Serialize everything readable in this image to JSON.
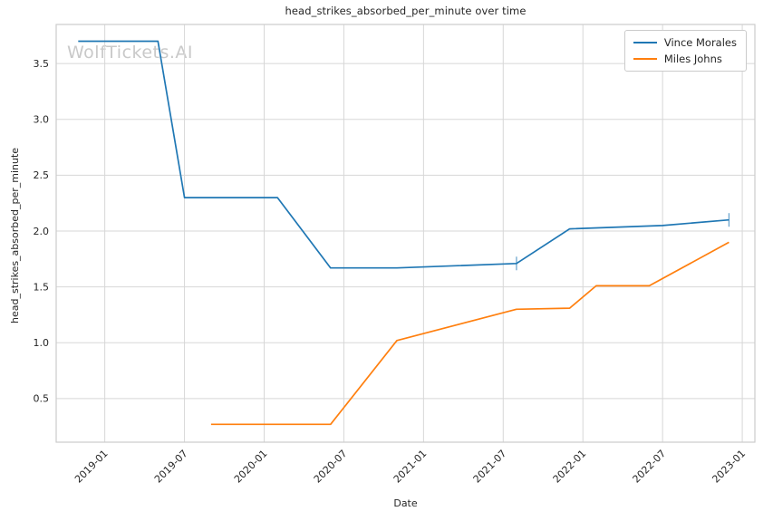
{
  "watermark": "WolfTickets.AI",
  "chart_data": {
    "type": "line",
    "title": "head_strikes_absorbed_per_minute over time",
    "xlabel": "Date",
    "ylabel": "head_strikes_absorbed_per_minute",
    "x_tick_labels": [
      "2019-01",
      "2019-07",
      "2020-01",
      "2020-07",
      "2021-01",
      "2021-07",
      "2022-01",
      "2022-07",
      "2023-01"
    ],
    "y_tick_labels": [
      "0.5",
      "1.0",
      "1.5",
      "2.0",
      "2.5",
      "3.0",
      "3.5"
    ],
    "ylim": [
      0.11,
      3.85
    ],
    "xlim_months_from_2019_01": [
      -3.66,
      48.95
    ],
    "grid": true,
    "legend_position": "upper right",
    "series": [
      {
        "name": "Vince Morales",
        "color": "#1f77b4",
        "points": [
          {
            "date": "2018-11",
            "value": 3.7
          },
          {
            "date": "2019-05",
            "value": 3.7
          },
          {
            "date": "2019-07",
            "value": 2.3
          },
          {
            "date": "2020-02",
            "value": 2.3
          },
          {
            "date": "2020-06",
            "value": 1.67
          },
          {
            "date": "2020-11",
            "value": 1.67
          },
          {
            "date": "2021-08",
            "value": 1.71
          },
          {
            "date": "2021-12",
            "value": 2.02
          },
          {
            "date": "2022-07",
            "value": 2.05
          },
          {
            "date": "2022-12",
            "value": 2.1
          }
        ],
        "error_cap_dates": [
          "2021-08",
          "2022-12"
        ]
      },
      {
        "name": "Miles Johns",
        "color": "#ff7f0e",
        "points": [
          {
            "date": "2019-09",
            "value": 0.27
          },
          {
            "date": "2020-06",
            "value": 0.27
          },
          {
            "date": "2020-11",
            "value": 1.02
          },
          {
            "date": "2021-08",
            "value": 1.3
          },
          {
            "date": "2021-12",
            "value": 1.31
          },
          {
            "date": "2022-02",
            "value": 1.51
          },
          {
            "date": "2022-06",
            "value": 1.51
          },
          {
            "date": "2022-12",
            "value": 1.9
          }
        ],
        "error_cap_dates": []
      }
    ],
    "colors": {
      "grid": "#d7d7d7",
      "spine": "#cccccc",
      "text": "#262626",
      "watermark": "#c9c9c9"
    }
  }
}
